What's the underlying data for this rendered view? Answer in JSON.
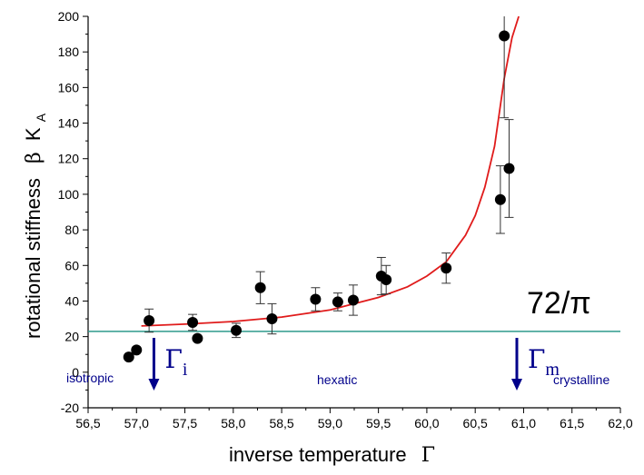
{
  "chart_data": {
    "type": "scatter",
    "xlabel_text": "inverse temperature",
    "xlabel_symbol": "Γ",
    "ylabel_text": "rotational stiffness",
    "ylabel_symbol": "β",
    "ylabel_var": "K",
    "ylabel_sub": "A",
    "xlim": [
      56.5,
      62.0
    ],
    "ylim": [
      -20,
      200
    ],
    "x_ticks": [
      56.5,
      57.0,
      57.5,
      58.0,
      58.5,
      59.0,
      59.5,
      60.0,
      60.5,
      61.0,
      61.5,
      62.0
    ],
    "x_tick_labels": [
      "56,5",
      "57,0",
      "57,5",
      "58,0",
      "58,5",
      "59,0",
      "59,5",
      "60,0",
      "60,5",
      "61,0",
      "61,5",
      "62,0"
    ],
    "y_ticks": [
      -20,
      0,
      20,
      40,
      60,
      80,
      100,
      120,
      140,
      160,
      180,
      200
    ],
    "y_tick_labels": [
      "-20",
      "0",
      "20",
      "40",
      "60",
      "80",
      "100",
      "120",
      "140",
      "160",
      "180",
      "200"
    ],
    "grid": false,
    "series": [
      {
        "points": [
          {
            "x": 56.92,
            "y": 8.5,
            "err": 0
          },
          {
            "x": 57.0,
            "y": 12.5,
            "err": 0
          },
          {
            "x": 57.13,
            "y": 29,
            "err": 6.5
          },
          {
            "x": 57.58,
            "y": 28,
            "err": 4.5
          },
          {
            "x": 57.63,
            "y": 19,
            "err": 0
          },
          {
            "x": 58.03,
            "y": 23.5,
            "err": 4
          },
          {
            "x": 58.28,
            "y": 47.5,
            "err": 9
          },
          {
            "x": 58.4,
            "y": 30,
            "err": 8.5
          },
          {
            "x": 58.85,
            "y": 41,
            "err": 6.5
          },
          {
            "x": 59.08,
            "y": 39.5,
            "err": 5
          },
          {
            "x": 59.24,
            "y": 40.5,
            "err": 8.5
          },
          {
            "x": 59.53,
            "y": 54,
            "err": 10.5
          },
          {
            "x": 59.58,
            "y": 52,
            "err": 8
          },
          {
            "x": 60.2,
            "y": 58.5,
            "err": 8.5
          },
          {
            "x": 60.76,
            "y": 97,
            "err": 19
          },
          {
            "x": 60.8,
            "y": 189,
            "err": 46
          },
          {
            "x": 60.85,
            "y": 114.5,
            "err": 27.5
          }
        ],
        "color": "#000000"
      },
      {
        "type": "line",
        "x": [
          57.05,
          57.5,
          58.0,
          58.5,
          59.0,
          59.5,
          59.8,
          60.0,
          60.2,
          60.4,
          60.5,
          60.6,
          60.7,
          60.8,
          60.88,
          60.95
        ],
        "y": [
          26,
          27,
          28.5,
          31,
          35,
          42,
          48,
          54,
          62,
          77,
          88,
          104,
          127,
          165,
          188,
          200
        ],
        "color": "#e01b1b"
      }
    ],
    "reference_line": {
      "y": 22.92,
      "label": "72/π",
      "color": "#2e9a8c"
    },
    "markers": [
      {
        "x": 57.18,
        "symbol": "Γ",
        "sub": "i",
        "color": "#00008b"
      },
      {
        "x": 60.93,
        "symbol": "Γ",
        "sub": "m",
        "color": "#00008b"
      }
    ],
    "regions": [
      {
        "label": "isotropic"
      },
      {
        "label": "hexatic"
      },
      {
        "label": "crystalline"
      }
    ]
  }
}
